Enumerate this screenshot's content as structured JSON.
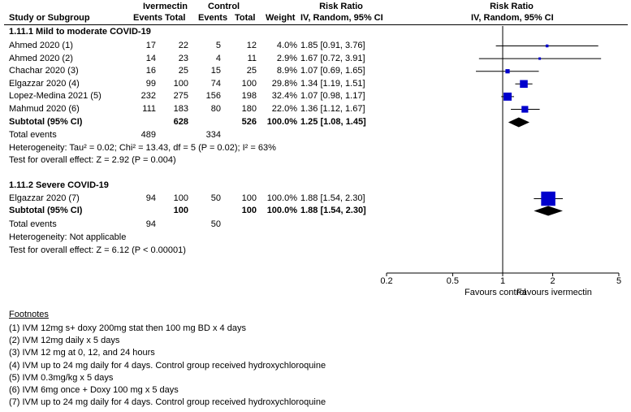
{
  "header": {
    "group1": "Ivermectin",
    "group2": "Control",
    "rr_title_left": "Risk Ratio",
    "rr_title_right": "Risk Ratio",
    "col_study": "Study or Subgroup",
    "col_events1": "Events",
    "col_total1": "Total",
    "col_events2": "Events",
    "col_total2": "Total",
    "col_weight": "Weight",
    "col_method_left": "IV, Random, 95% CI",
    "col_method_right": "IV, Random, 95% CI"
  },
  "subgroups": [
    {
      "title": "1.11.1 Mild to moderate COVID-19",
      "studies": [
        {
          "name": "Ahmed 2020 (1)",
          "e1": "17",
          "t1": "22",
          "e2": "5",
          "t2": "12",
          "weight": "4.0%",
          "ci_text": "1.85 [0.91, 3.76]",
          "rr": 1.85,
          "lo": 0.91,
          "hi": 3.76,
          "w": 4.0
        },
        {
          "name": "Ahmed 2020 (2)",
          "e1": "14",
          "t1": "23",
          "e2": "4",
          "t2": "11",
          "weight": "2.9%",
          "ci_text": "1.67 [0.72, 3.91]",
          "rr": 1.67,
          "lo": 0.72,
          "hi": 3.91,
          "w": 2.9
        },
        {
          "name": "Chachar 2020 (3)",
          "e1": "16",
          "t1": "25",
          "e2": "15",
          "t2": "25",
          "weight": "8.9%",
          "ci_text": "1.07 [0.69, 1.65]",
          "rr": 1.07,
          "lo": 0.69,
          "hi": 1.65,
          "w": 8.9
        },
        {
          "name": "Elgazzar 2020 (4)",
          "e1": "99",
          "t1": "100",
          "e2": "74",
          "t2": "100",
          "weight": "29.8%",
          "ci_text": "1.34 [1.19, 1.51]",
          "rr": 1.34,
          "lo": 1.19,
          "hi": 1.51,
          "w": 29.8
        },
        {
          "name": "Lopez-Medina 2021 (5)",
          "e1": "232",
          "t1": "275",
          "e2": "156",
          "t2": "198",
          "weight": "32.4%",
          "ci_text": "1.07 [0.98, 1.17]",
          "rr": 1.07,
          "lo": 0.98,
          "hi": 1.17,
          "w": 32.4
        },
        {
          "name": "Mahmud 2020 (6)",
          "e1": "111",
          "t1": "183",
          "e2": "80",
          "t2": "180",
          "weight": "22.0%",
          "ci_text": "1.36 [1.12, 1.67]",
          "rr": 1.36,
          "lo": 1.12,
          "hi": 1.67,
          "w": 22.0
        }
      ],
      "subtotal": {
        "label": "Subtotal (95% CI)",
        "t1": "628",
        "t2": "526",
        "weight": "100.0%",
        "ci_text": "1.25 [1.08, 1.45]",
        "rr": 1.25,
        "lo": 1.08,
        "hi": 1.45
      },
      "total_events": {
        "label": "Total events",
        "e1": "489",
        "e2": "334"
      },
      "heterogeneity": "Heterogeneity: Tau² = 0.02; Chi² = 13.43, df = 5 (P = 0.02); I² = 63%",
      "overall": "Test for overall effect: Z = 2.92 (P = 0.004)"
    },
    {
      "title": "1.11.2 Severe COVID-19",
      "studies": [
        {
          "name": "Elgazzar 2020 (7)",
          "e1": "94",
          "t1": "100",
          "e2": "50",
          "t2": "100",
          "weight": "100.0%",
          "ci_text": "1.88 [1.54, 2.30]",
          "rr": 1.88,
          "lo": 1.54,
          "hi": 2.3,
          "w": 100.0
        }
      ],
      "subtotal": {
        "label": "Subtotal (95% CI)",
        "t1": "100",
        "t2": "100",
        "weight": "100.0%",
        "ci_text": "1.88 [1.54, 2.30]",
        "rr": 1.88,
        "lo": 1.54,
        "hi": 2.3
      },
      "total_events": {
        "label": "Total events",
        "e1": "94",
        "e2": "50"
      },
      "heterogeneity": "Heterogeneity: Not applicable",
      "overall": "Test for overall effect: Z = 6.12 (P < 0.00001)"
    }
  ],
  "axis": {
    "ticks": [
      0.2,
      0.5,
      1,
      2,
      5
    ],
    "tick_labels": [
      "0.2",
      "0.5",
      "1",
      "2",
      "5"
    ],
    "left_label": "Favours control",
    "right_label": "Favours ivermectin"
  },
  "footnotes": {
    "title": "Footnotes",
    "items": [
      "(1) IVM 12mg s+ doxy 200mg stat then 100 mg BD x 4 days",
      "(2) IVM 12mg daily x 5 days",
      "(3) IVM 12 mg at 0, 12, and 24 hours",
      "(4) IVM up to 24 mg daily for 4 days. Control group received hydroxychloroquine",
      "(5) IVM 0.3mg/kg x 5 days",
      "(6) IVM 6mg once + Doxy 100 mg x 5 days",
      "(7) IVM up to 24 mg daily for 4 days. Control group received hydroxychloroquine"
    ]
  },
  "chart_data": {
    "type": "forest",
    "scale": "log",
    "xlim": [
      0.2,
      5
    ],
    "xticks": [
      0.2,
      0.5,
      1,
      2,
      5
    ],
    "reference_line": 1,
    "xlabel_left": "Favours control",
    "xlabel_right": "Favours ivermectin",
    "title": "Risk Ratio IV, Random, 95% CI",
    "series": [
      {
        "name": "1.11.1 Mild to moderate COVID-19",
        "points": [
          {
            "label": "Ahmed 2020 (1)",
            "rr": 1.85,
            "lo": 0.91,
            "hi": 3.76,
            "weight": 4.0
          },
          {
            "label": "Ahmed 2020 (2)",
            "rr": 1.67,
            "lo": 0.72,
            "hi": 3.91,
            "weight": 2.9
          },
          {
            "label": "Chachar 2020 (3)",
            "rr": 1.07,
            "lo": 0.69,
            "hi": 1.65,
            "weight": 8.9
          },
          {
            "label": "Elgazzar 2020 (4)",
            "rr": 1.34,
            "lo": 1.19,
            "hi": 1.51,
            "weight": 29.8
          },
          {
            "label": "Lopez-Medina 2021 (5)",
            "rr": 1.07,
            "lo": 0.98,
            "hi": 1.17,
            "weight": 32.4
          },
          {
            "label": "Mahmud 2020 (6)",
            "rr": 1.36,
            "lo": 1.12,
            "hi": 1.67,
            "weight": 22.0
          }
        ],
        "pooled": {
          "rr": 1.25,
          "lo": 1.08,
          "hi": 1.45
        }
      },
      {
        "name": "1.11.2 Severe COVID-19",
        "points": [
          {
            "label": "Elgazzar 2020 (7)",
            "rr": 1.88,
            "lo": 1.54,
            "hi": 2.3,
            "weight": 100.0
          }
        ],
        "pooled": {
          "rr": 1.88,
          "lo": 1.54,
          "hi": 2.3
        }
      }
    ]
  }
}
